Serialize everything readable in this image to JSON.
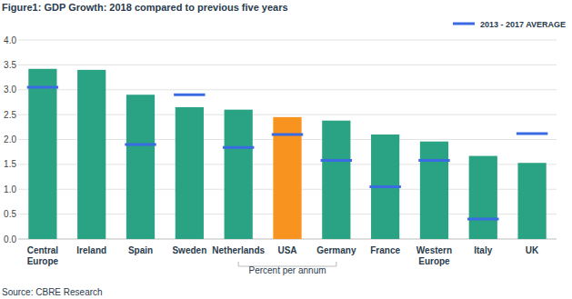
{
  "chart_data": {
    "type": "bar",
    "title": "Figure1: GDP Growth: 2018 compared to previous five years",
    "x_label": "Percent per annum",
    "source": "Source: CBRE Research",
    "categories": [
      "Central Europe",
      "Ireland",
      "Spain",
      "Sweden",
      "Netherlands",
      "USA",
      "Germany",
      "France",
      "Western Europe",
      "Italy",
      "UK"
    ],
    "series": [
      {
        "type": "bar",
        "colors": [
          "#2aa384",
          "#2aa384",
          "#2aa384",
          "#2aa384",
          "#2aa384",
          "#f7931e",
          "#2aa384",
          "#2aa384",
          "#2aa384",
          "#2aa384",
          "#2aa384"
        ],
        "values": [
          3.42,
          3.4,
          2.9,
          2.65,
          2.6,
          2.45,
          2.38,
          2.1,
          1.96,
          1.67,
          1.53
        ]
      },
      {
        "name": "2013 - 2017 AVERAGE",
        "type": "scatter",
        "marker": "dash",
        "color": "#3b6be3",
        "values": [
          3.05,
          null,
          1.9,
          2.9,
          1.84,
          2.1,
          1.58,
          1.05,
          1.58,
          0.4,
          2.12
        ]
      }
    ],
    "ylim": [
      0,
      4
    ],
    "yticks": [
      {
        "value": 0,
        "label": "0.0"
      },
      {
        "value": 0.5,
        "label": "0.5"
      },
      {
        "value": 1,
        "label": "1.0"
      },
      {
        "value": 1.5,
        "label": "1.5"
      },
      {
        "value": 2,
        "label": "2.0"
      },
      {
        "value": 2.5,
        "label": "2.5"
      },
      {
        "value": 3,
        "label": "3.0"
      },
      {
        "value": 3.5,
        "label": "3.5"
      },
      {
        "value": 4,
        "label": "4.0"
      }
    ],
    "grid": true,
    "legend": "top-right"
  }
}
